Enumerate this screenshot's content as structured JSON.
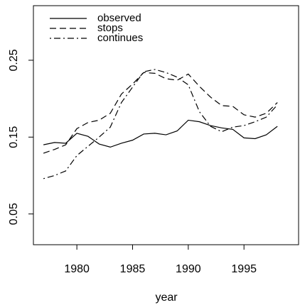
{
  "chart_data": {
    "type": "line",
    "xlabel": "year",
    "x": [
      1977,
      1978,
      1979,
      1980,
      1981,
      1982,
      1983,
      1984,
      1985,
      1986,
      1987,
      1988,
      1989,
      1990,
      1991,
      1992,
      1993,
      1994,
      1995,
      1996,
      1997,
      1998
    ],
    "series": [
      {
        "name": "observed",
        "color": "#000000",
        "linetype": "solid",
        "values": [
          0.14,
          0.143,
          0.142,
          0.155,
          0.151,
          0.141,
          0.137,
          0.142,
          0.146,
          0.154,
          0.155,
          0.153,
          0.158,
          0.172,
          0.17,
          0.165,
          0.162,
          0.16,
          0.149,
          0.148,
          0.153,
          0.164
        ]
      },
      {
        "name": "stops",
        "color": "#000000",
        "linetype": "dashed",
        "values": [
          0.129,
          0.134,
          0.14,
          0.161,
          0.169,
          0.172,
          0.181,
          0.206,
          0.219,
          0.234,
          0.233,
          0.226,
          0.224,
          0.232,
          0.216,
          0.202,
          0.191,
          0.19,
          0.179,
          0.176,
          0.181,
          0.195
        ]
      },
      {
        "name": "continues",
        "color": "#000000",
        "linetype": "dotdash",
        "values": [
          0.096,
          0.1,
          0.106,
          0.126,
          0.138,
          0.15,
          0.163,
          0.195,
          0.215,
          0.235,
          0.238,
          0.234,
          0.228,
          0.218,
          0.183,
          0.164,
          0.157,
          0.163,
          0.165,
          0.17,
          0.176,
          0.192
        ]
      }
    ],
    "xlim": [
      1976.1,
      1999.9
    ],
    "xticks": [
      1980,
      1985,
      1990,
      1995
    ],
    "ylim": [
      0.01,
      0.321
    ],
    "yticks": [
      0.05,
      0.15,
      0.25
    ],
    "legend": "top-left"
  }
}
